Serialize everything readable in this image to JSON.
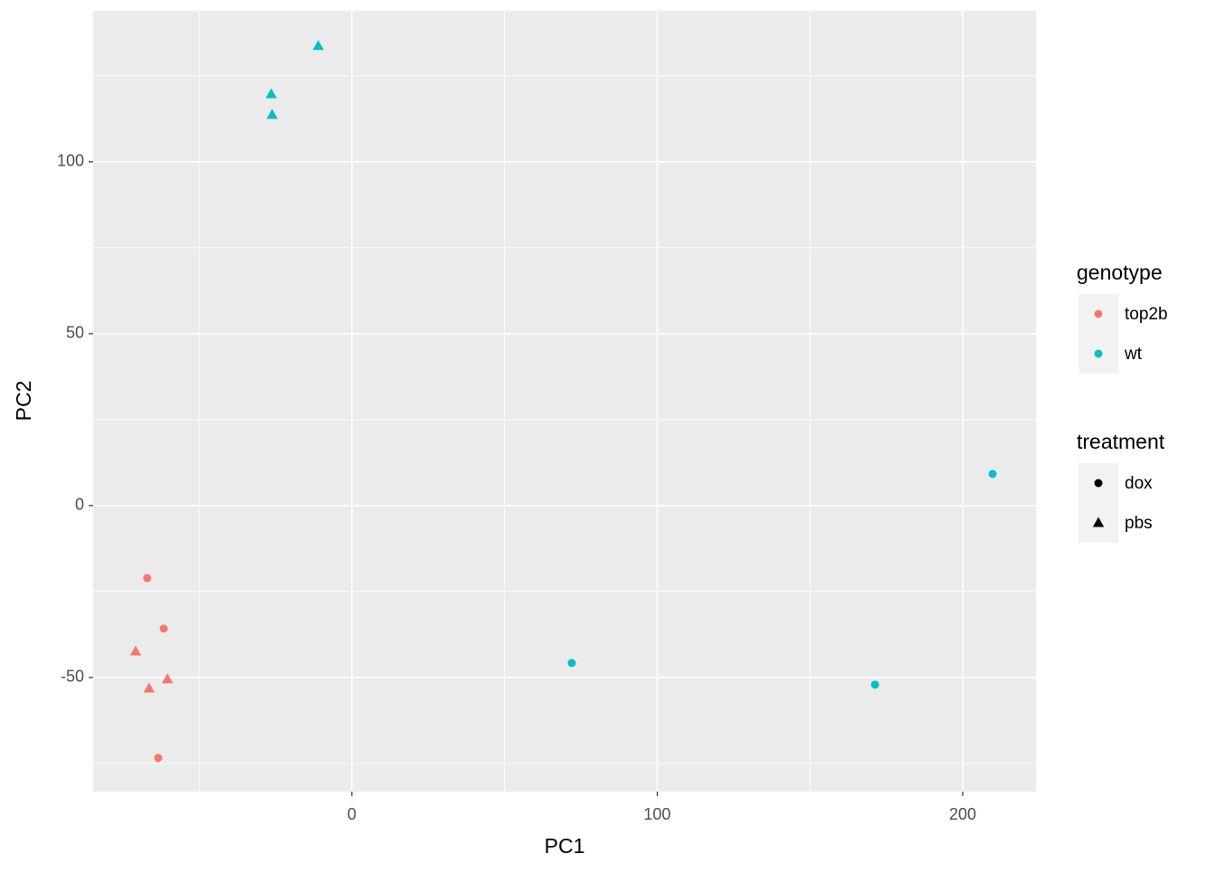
{
  "chart_data": {
    "type": "scatter",
    "x_label": "PC1",
    "y_label": "PC2",
    "xlim": [
      -84.7,
      224
    ],
    "ylim": [
      -83.2,
      143.9
    ],
    "xticks": [
      0,
      100,
      200
    ],
    "yticks": [
      -50,
      0,
      50,
      100
    ],
    "x_minor_breaks": [
      -50,
      50,
      150
    ],
    "y_minor_breaks": [
      -75,
      -25,
      25,
      75,
      125
    ],
    "grid": true,
    "legend_position": "right",
    "color_legend_title": "genotype",
    "shape_legend_title": "treatment",
    "shapes": [
      {
        "name": "dox",
        "shape": "circle"
      },
      {
        "name": "pbs",
        "shape": "triangle"
      }
    ],
    "series": [
      {
        "name": "top2b",
        "color": "#F8766D",
        "x": [
          -67,
          -61.6,
          -63.4,
          -70.8,
          -66.4,
          -60.4
        ],
        "values": [
          -21.1,
          -35.8,
          -73.4,
          -42.4,
          -53.2,
          -50.5
        ],
        "treatment": [
          "dox",
          "dox",
          "dox",
          "pbs",
          "pbs",
          "pbs"
        ]
      },
      {
        "name": "wt",
        "color": "#00BFC4",
        "x": [
          209.8,
          72,
          171.3,
          -11,
          -26.4,
          -26.1
        ],
        "values": [
          9.2,
          -45.8,
          -52.1,
          133.7,
          119.7,
          113.7
        ],
        "treatment": [
          "dox",
          "dox",
          "dox",
          "pbs",
          "pbs",
          "pbs"
        ]
      }
    ]
  }
}
